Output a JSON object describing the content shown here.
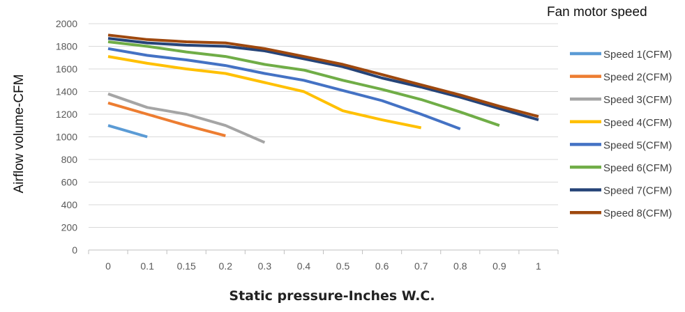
{
  "chart_data": {
    "type": "line",
    "title": "",
    "xlabel": "Static pressure-Inches W.C.",
    "ylabel": "Airflow volume-CFM",
    "legend_title": "Fan motor speed",
    "legend_position": "right",
    "grid": true,
    "categories": [
      "0",
      "0.1",
      "0.15",
      "0.2",
      "0.3",
      "0.4",
      "0.5",
      "0.6",
      "0.7",
      "0.8",
      "0.9",
      "1"
    ],
    "ylim": [
      0,
      2000
    ],
    "yticks": [
      0,
      200,
      400,
      600,
      800,
      1000,
      1200,
      1400,
      1600,
      1800,
      2000
    ],
    "series": [
      {
        "name": "Speed 1(CFM)",
        "color": "#5B9BD5",
        "values": [
          1100,
          1000,
          null,
          null,
          null,
          null,
          null,
          null,
          null,
          null,
          null,
          null
        ]
      },
      {
        "name": "Speed 2(CFM)",
        "color": "#ED7D31",
        "values": [
          1300,
          1200,
          1100,
          1010,
          null,
          null,
          null,
          null,
          null,
          null,
          null,
          null
        ]
      },
      {
        "name": "Speed 3(CFM)",
        "color": "#A5A5A5",
        "values": [
          1380,
          1260,
          1200,
          1100,
          950,
          null,
          null,
          null,
          null,
          null,
          null,
          null
        ]
      },
      {
        "name": "Speed 4(CFM)",
        "color": "#FFC000",
        "values": [
          1710,
          1650,
          1600,
          1560,
          1480,
          1400,
          1230,
          1150,
          1080,
          null,
          null,
          null
        ]
      },
      {
        "name": "Speed 5(CFM)",
        "color": "#4472C4",
        "values": [
          1780,
          1720,
          1680,
          1630,
          1560,
          1500,
          1410,
          1320,
          1200,
          1070,
          null,
          null
        ]
      },
      {
        "name": "Speed 6(CFM)",
        "color": "#70AD47",
        "values": [
          1840,
          1800,
          1750,
          1710,
          1640,
          1590,
          1500,
          1420,
          1330,
          1220,
          1100,
          null
        ]
      },
      {
        "name": "Speed 7(CFM)",
        "color": "#264478",
        "values": [
          1870,
          1830,
          1810,
          1800,
          1760,
          1690,
          1620,
          1520,
          1440,
          1350,
          1250,
          1150
        ]
      },
      {
        "name": "Speed 8(CFM)",
        "color": "#9E480E",
        "values": [
          1900,
          1860,
          1840,
          1830,
          1780,
          1710,
          1640,
          1550,
          1460,
          1370,
          1270,
          1180
        ]
      }
    ]
  }
}
